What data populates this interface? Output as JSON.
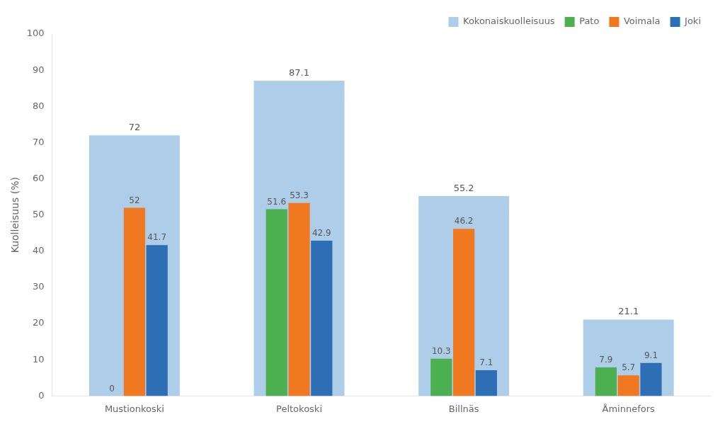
{
  "chart_data": {
    "type": "bar",
    "categories": [
      "Mustionkoski",
      "Peltokoski",
      "Billnäs",
      "Åminnefors"
    ],
    "series": [
      {
        "name": "Kokonaiskuolleisuus",
        "color": "#aecde8",
        "values": [
          72.0,
          87.1,
          55.2,
          21.1
        ]
      },
      {
        "name": "Pato",
        "color": "#4caf50",
        "values": [
          0.0,
          51.6,
          10.3,
          7.9
        ]
      },
      {
        "name": "Voimala",
        "color": "#f07820",
        "values": [
          52.0,
          53.3,
          46.2,
          5.7
        ]
      },
      {
        "name": "Joki",
        "color": "#2e6eb5",
        "values": [
          41.7,
          42.9,
          7.1,
          9.1
        ]
      }
    ],
    "ylabel": "Kuolleisuus (%)",
    "ylim": [
      0,
      100
    ],
    "yticks": [
      0,
      10,
      20,
      30,
      40,
      50,
      60,
      70,
      80,
      90,
      100
    ],
    "grid": false,
    "legend": "upper right",
    "data_labels": true
  }
}
